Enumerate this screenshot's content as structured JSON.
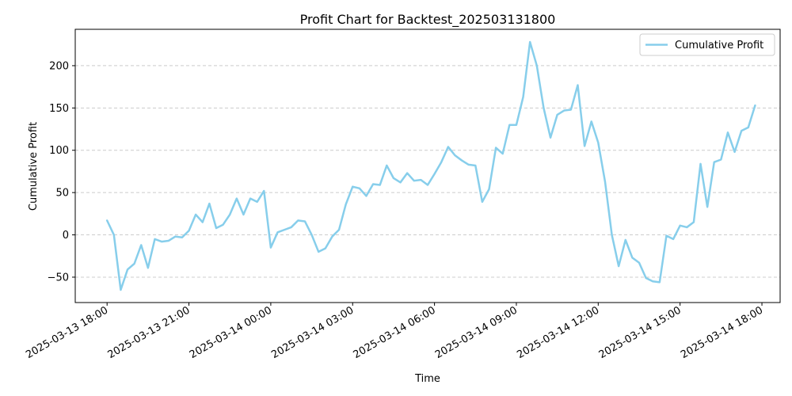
{
  "chart_data": {
    "type": "line",
    "title": "Profit Chart for Backtest_202503131800",
    "xlabel": "Time",
    "ylabel": "Cumulative Profit",
    "xlim": [
      "2025-03-13 16:50",
      "2025-03-14 18:40"
    ],
    "ylim": [
      -80,
      243
    ],
    "grid": "horizontal dashed",
    "legend_position": "top-right",
    "line_color": "#87ceeb",
    "x_ticks": [
      {
        "t": "2025-03-13 18:00",
        "label": "2025-03-13 18:00"
      },
      {
        "t": "2025-03-13 21:00",
        "label": "2025-03-13 21:00"
      },
      {
        "t": "2025-03-14 00:00",
        "label": "2025-03-14 00:00"
      },
      {
        "t": "2025-03-14 03:00",
        "label": "2025-03-14 03:00"
      },
      {
        "t": "2025-03-14 06:00",
        "label": "2025-03-14 06:00"
      },
      {
        "t": "2025-03-14 09:00",
        "label": "2025-03-14 09:00"
      },
      {
        "t": "2025-03-14 12:00",
        "label": "2025-03-14 12:00"
      },
      {
        "t": "2025-03-14 15:00",
        "label": "2025-03-14 15:00"
      },
      {
        "t": "2025-03-14 18:00",
        "label": "2025-03-14 18:00"
      }
    ],
    "y_ticks": [
      {
        "v": -50,
        "label": "−50"
      },
      {
        "v": 0,
        "label": "0"
      },
      {
        "v": 50,
        "label": "50"
      },
      {
        "v": 100,
        "label": "100"
      },
      {
        "v": 150,
        "label": "150"
      },
      {
        "v": 200,
        "label": "200"
      }
    ],
    "series": [
      {
        "name": "Cumulative Profit",
        "x": [
          "2025-03-13 18:00",
          "2025-03-13 18:15",
          "2025-03-13 18:30",
          "2025-03-13 18:45",
          "2025-03-13 19:00",
          "2025-03-13 19:15",
          "2025-03-13 19:30",
          "2025-03-13 19:45",
          "2025-03-13 20:00",
          "2025-03-13 20:15",
          "2025-03-13 20:30",
          "2025-03-13 20:45",
          "2025-03-13 21:00",
          "2025-03-13 21:15",
          "2025-03-13 21:30",
          "2025-03-13 21:45",
          "2025-03-13 22:00",
          "2025-03-13 22:15",
          "2025-03-13 22:30",
          "2025-03-13 22:45",
          "2025-03-13 23:00",
          "2025-03-13 23:15",
          "2025-03-13 23:30",
          "2025-03-13 23:45",
          "2025-03-14 00:00",
          "2025-03-14 00:15",
          "2025-03-14 00:30",
          "2025-03-14 00:45",
          "2025-03-14 01:00",
          "2025-03-14 01:15",
          "2025-03-14 01:30",
          "2025-03-14 01:45",
          "2025-03-14 02:00",
          "2025-03-14 02:15",
          "2025-03-14 02:30",
          "2025-03-14 02:45",
          "2025-03-14 03:00",
          "2025-03-14 03:15",
          "2025-03-14 03:30",
          "2025-03-14 03:45",
          "2025-03-14 04:00",
          "2025-03-14 04:15",
          "2025-03-14 04:30",
          "2025-03-14 04:45",
          "2025-03-14 05:00",
          "2025-03-14 05:15",
          "2025-03-14 05:30",
          "2025-03-14 05:45",
          "2025-03-14 06:00",
          "2025-03-14 06:15",
          "2025-03-14 06:30",
          "2025-03-14 06:45",
          "2025-03-14 07:00",
          "2025-03-14 07:15",
          "2025-03-14 07:30",
          "2025-03-14 07:45",
          "2025-03-14 08:00",
          "2025-03-14 08:15",
          "2025-03-14 08:30",
          "2025-03-14 08:45",
          "2025-03-14 09:00",
          "2025-03-14 09:15",
          "2025-03-14 09:30",
          "2025-03-14 09:45",
          "2025-03-14 10:00",
          "2025-03-14 10:15",
          "2025-03-14 10:30",
          "2025-03-14 10:45",
          "2025-03-14 11:00",
          "2025-03-14 11:15",
          "2025-03-14 11:30",
          "2025-03-14 11:45",
          "2025-03-14 12:00",
          "2025-03-14 12:15",
          "2025-03-14 12:30",
          "2025-03-14 12:45",
          "2025-03-14 13:00",
          "2025-03-14 13:15",
          "2025-03-14 13:30",
          "2025-03-14 13:45",
          "2025-03-14 14:00",
          "2025-03-14 14:15",
          "2025-03-14 14:30",
          "2025-03-14 14:45",
          "2025-03-14 15:00",
          "2025-03-14 15:15",
          "2025-03-14 15:30",
          "2025-03-14 15:45",
          "2025-03-14 16:00",
          "2025-03-14 16:15",
          "2025-03-14 16:30",
          "2025-03-14 16:45",
          "2025-03-14 17:00",
          "2025-03-14 17:15",
          "2025-03-14 17:30",
          "2025-03-14 17:45"
        ],
        "values": [
          17,
          0,
          -65,
          -41,
          -34,
          -12,
          -39,
          -5,
          -8,
          -7,
          -2,
          -3,
          5,
          24,
          15,
          37,
          8,
          12,
          24,
          43,
          24,
          43,
          39,
          52,
          -15,
          3,
          6,
          9,
          17,
          16,
          0,
          -20,
          -16,
          -2,
          6,
          36,
          57,
          55,
          46,
          60,
          59,
          82,
          67,
          62,
          73,
          64,
          65,
          59,
          72,
          86,
          104,
          94,
          88,
          83,
          82,
          39,
          54,
          103,
          96,
          130,
          130,
          163,
          228,
          200,
          150,
          115,
          142,
          147,
          148,
          177,
          105,
          134,
          109,
          63,
          0,
          -37,
          -6,
          -27,
          -33,
          -51,
          -55,
          -56,
          -1,
          -5,
          11,
          9,
          15,
          84,
          33,
          86,
          89,
          121,
          98,
          123,
          127,
          153
        ]
      }
    ]
  }
}
